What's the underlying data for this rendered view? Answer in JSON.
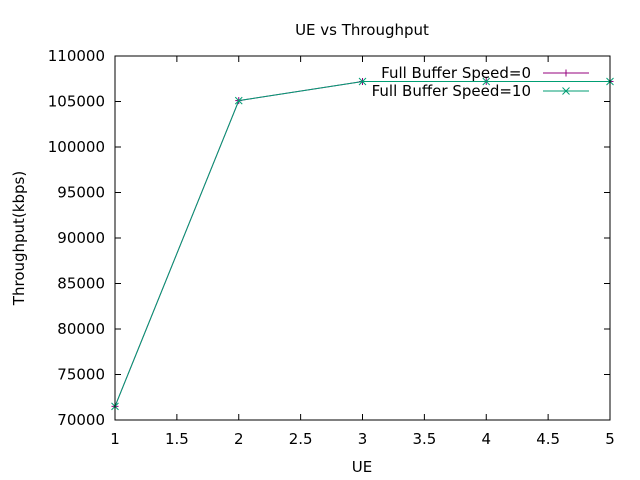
{
  "chart_data": {
    "type": "line",
    "title": "UE vs Throughput",
    "xlabel": "UE",
    "ylabel": "Throughput(kbps)",
    "xlim": [
      1,
      5
    ],
    "ylim": [
      70000,
      110000
    ],
    "xticks": [
      1,
      1.5,
      2,
      2.5,
      3,
      3.5,
      4,
      4.5,
      5
    ],
    "xtick_labels": [
      "1",
      "1.5",
      "2",
      "2.5",
      "3",
      "3.5",
      "4",
      "4.5",
      "5"
    ],
    "yticks": [
      70000,
      75000,
      80000,
      85000,
      90000,
      95000,
      100000,
      105000,
      110000
    ],
    "ytick_labels": [
      "70000",
      "75000",
      "80000",
      "85000",
      "90000",
      "95000",
      "100000",
      "105000",
      "110000"
    ],
    "grid": false,
    "legend_position": "top-right",
    "series": [
      {
        "name": "Full Buffer Speed=0",
        "color": "#94007d",
        "marker": "plus",
        "x": [
          1,
          2,
          3,
          4,
          5
        ],
        "y": [
          71500,
          105100,
          107200,
          107200,
          107200
        ]
      },
      {
        "name": "Full Buffer Speed=10",
        "color": "#009e73",
        "marker": "cross",
        "x": [
          1,
          2,
          3,
          4,
          5
        ],
        "y": [
          71500,
          105100,
          107200,
          107200,
          107200
        ]
      }
    ]
  }
}
